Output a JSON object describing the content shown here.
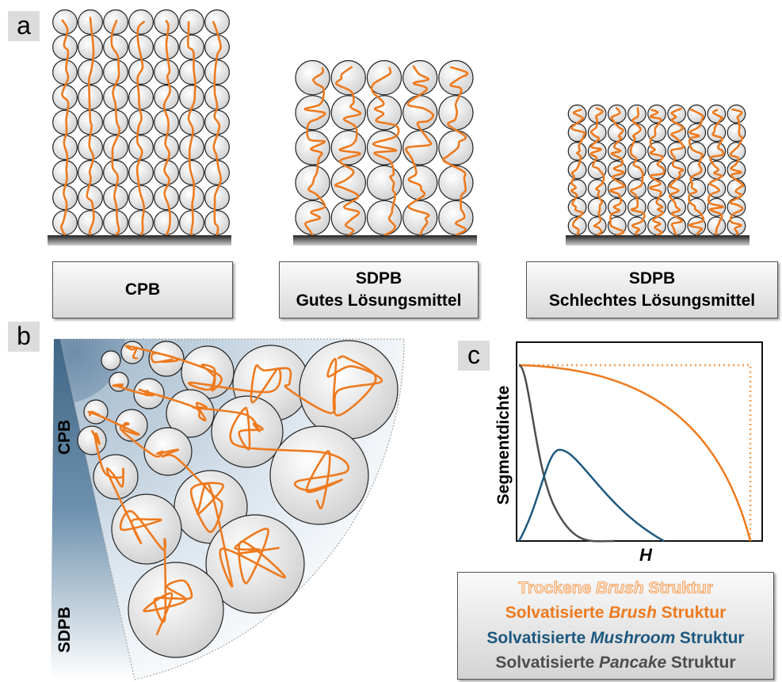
{
  "panel_labels": [
    "a",
    "b",
    "c"
  ],
  "panel_a": {
    "boxes": [
      {
        "lines": [
          "CPB"
        ]
      },
      {
        "lines": [
          "SDPB",
          "Gutes Lösungsmittel"
        ]
      },
      {
        "lines": [
          "SDPB",
          "Schlechtes Lösungsmittel"
        ]
      }
    ]
  },
  "panel_b": {
    "side_labels": [
      "CPB",
      "SDPB"
    ]
  },
  "panel_c": {
    "y_label": "Segmentdichte",
    "x_label": "H",
    "legend": [
      {
        "parts": [
          "Trockene",
          "Brush",
          "Struktur"
        ],
        "color": "#f39a4e"
      },
      {
        "parts": [
          "Solvatisierte",
          "Brush",
          "Struktur"
        ],
        "color": "#ee7a1e"
      },
      {
        "parts": [
          "Solvatisierte",
          "Mushroom",
          "Struktur"
        ],
        "color": "#1d587f"
      },
      {
        "parts": [
          "Solvatisierte",
          "Pancake",
          "Struktur"
        ],
        "color": "#4d4d4d"
      }
    ]
  }
}
